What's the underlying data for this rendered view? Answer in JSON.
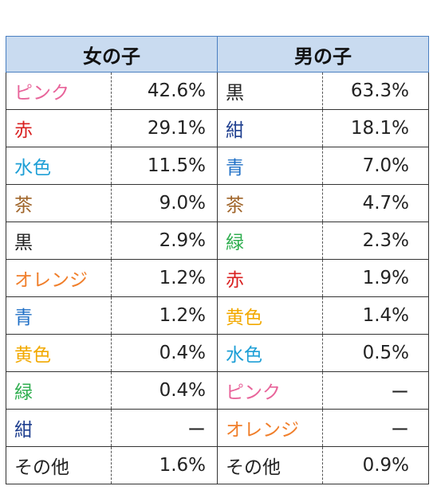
{
  "header": {
    "girls": "女の子",
    "boys": "男の子"
  },
  "rows": [
    {
      "g_name": "ピンク",
      "g_color": "#e8649a",
      "g_pct": "42.6%",
      "b_name": "黒",
      "b_color": "#222222",
      "b_pct": "63.3%"
    },
    {
      "g_name": "赤",
      "g_color": "#d92020",
      "g_pct": "29.1%",
      "b_name": "紺",
      "b_color": "#1f3f8f",
      "b_pct": "18.1%"
    },
    {
      "g_name": "水色",
      "g_color": "#1e9fd6",
      "g_pct": "11.5%",
      "b_name": "青",
      "b_color": "#1f6fc6",
      "b_pct": "7.0%"
    },
    {
      "g_name": "茶",
      "g_color": "#a0652a",
      "g_pct": "9.0%",
      "b_name": "茶",
      "b_color": "#a0652a",
      "b_pct": "4.7%"
    },
    {
      "g_name": "黒",
      "g_color": "#222222",
      "g_pct": "2.9%",
      "b_name": "緑",
      "b_color": "#2fae4f",
      "b_pct": "2.3%"
    },
    {
      "g_name": "オレンジ",
      "g_color": "#f07e2a",
      "g_pct": "1.2%",
      "b_name": "赤",
      "b_color": "#d92020",
      "b_pct": "1.9%"
    },
    {
      "g_name": "青",
      "g_color": "#1f6fc6",
      "g_pct": "1.2%",
      "b_name": "黄色",
      "b_color": "#f2a900",
      "b_pct": "1.4%"
    },
    {
      "g_name": "黄色",
      "g_color": "#f2a900",
      "g_pct": "0.4%",
      "b_name": "水色",
      "b_color": "#1e9fd6",
      "b_pct": "0.5%"
    },
    {
      "g_name": "緑",
      "g_color": "#2fae4f",
      "g_pct": "0.4%",
      "b_name": "ピンク",
      "b_color": "#e8649a",
      "b_pct": "ー"
    },
    {
      "g_name": "紺",
      "g_color": "#1f3f8f",
      "g_pct": "ー",
      "b_name": "オレンジ",
      "b_color": "#f07e2a",
      "b_pct": "ー"
    },
    {
      "g_name": "その他",
      "g_color": "#222222",
      "g_pct": "1.6%",
      "b_name": "その他",
      "b_color": "#222222",
      "b_pct": "0.9%"
    }
  ]
}
